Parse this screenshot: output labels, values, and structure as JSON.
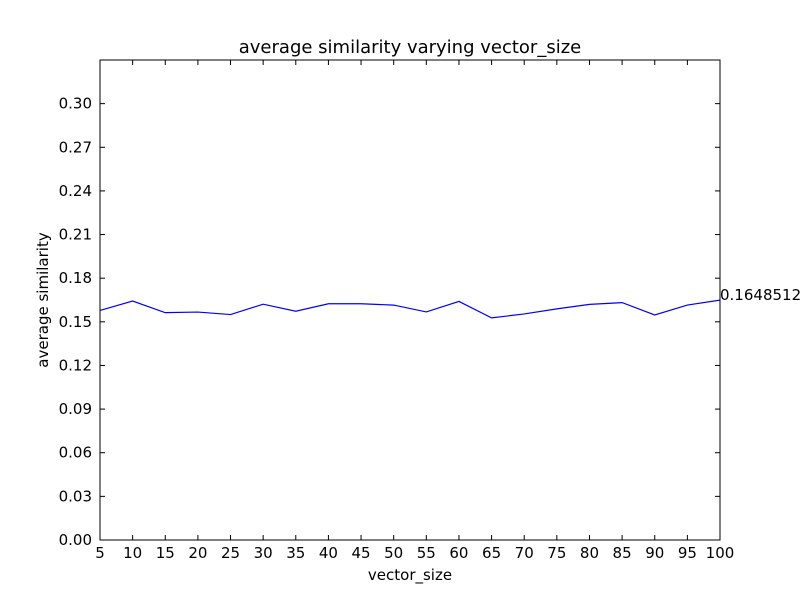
{
  "chart_data": {
    "type": "line",
    "title": "average similarity varying vector_size",
    "xlabel": "vector_size",
    "ylabel": "average similarity",
    "xlim": [
      5,
      100
    ],
    "ylim": [
      0,
      0.33
    ],
    "x_ticks": [
      5,
      10,
      15,
      20,
      25,
      30,
      35,
      40,
      45,
      50,
      55,
      60,
      65,
      70,
      75,
      80,
      85,
      90,
      95,
      100
    ],
    "y_ticks": [
      "0.00",
      "0.03",
      "0.06",
      "0.09",
      "0.12",
      "0.15",
      "0.18",
      "0.21",
      "0.24",
      "0.27",
      "0.30"
    ],
    "grid": false,
    "line_color": "#0000ff",
    "series": [
      {
        "x": [
          5,
          10,
          15,
          20,
          25,
          30,
          35,
          40,
          45,
          50,
          55,
          60,
          65,
          70,
          75,
          80,
          85,
          90,
          95,
          100
        ],
        "values": [
          0.1578,
          0.1643,
          0.1563,
          0.1567,
          0.155,
          0.1621,
          0.1573,
          0.1624,
          0.1624,
          0.1615,
          0.1568,
          0.164,
          0.1527,
          0.1554,
          0.1589,
          0.162,
          0.1632,
          0.1547,
          0.1615,
          0.1649
        ]
      }
    ],
    "annotation": {
      "x": 100,
      "y": 0.1649,
      "text": "0.1648512"
    }
  }
}
